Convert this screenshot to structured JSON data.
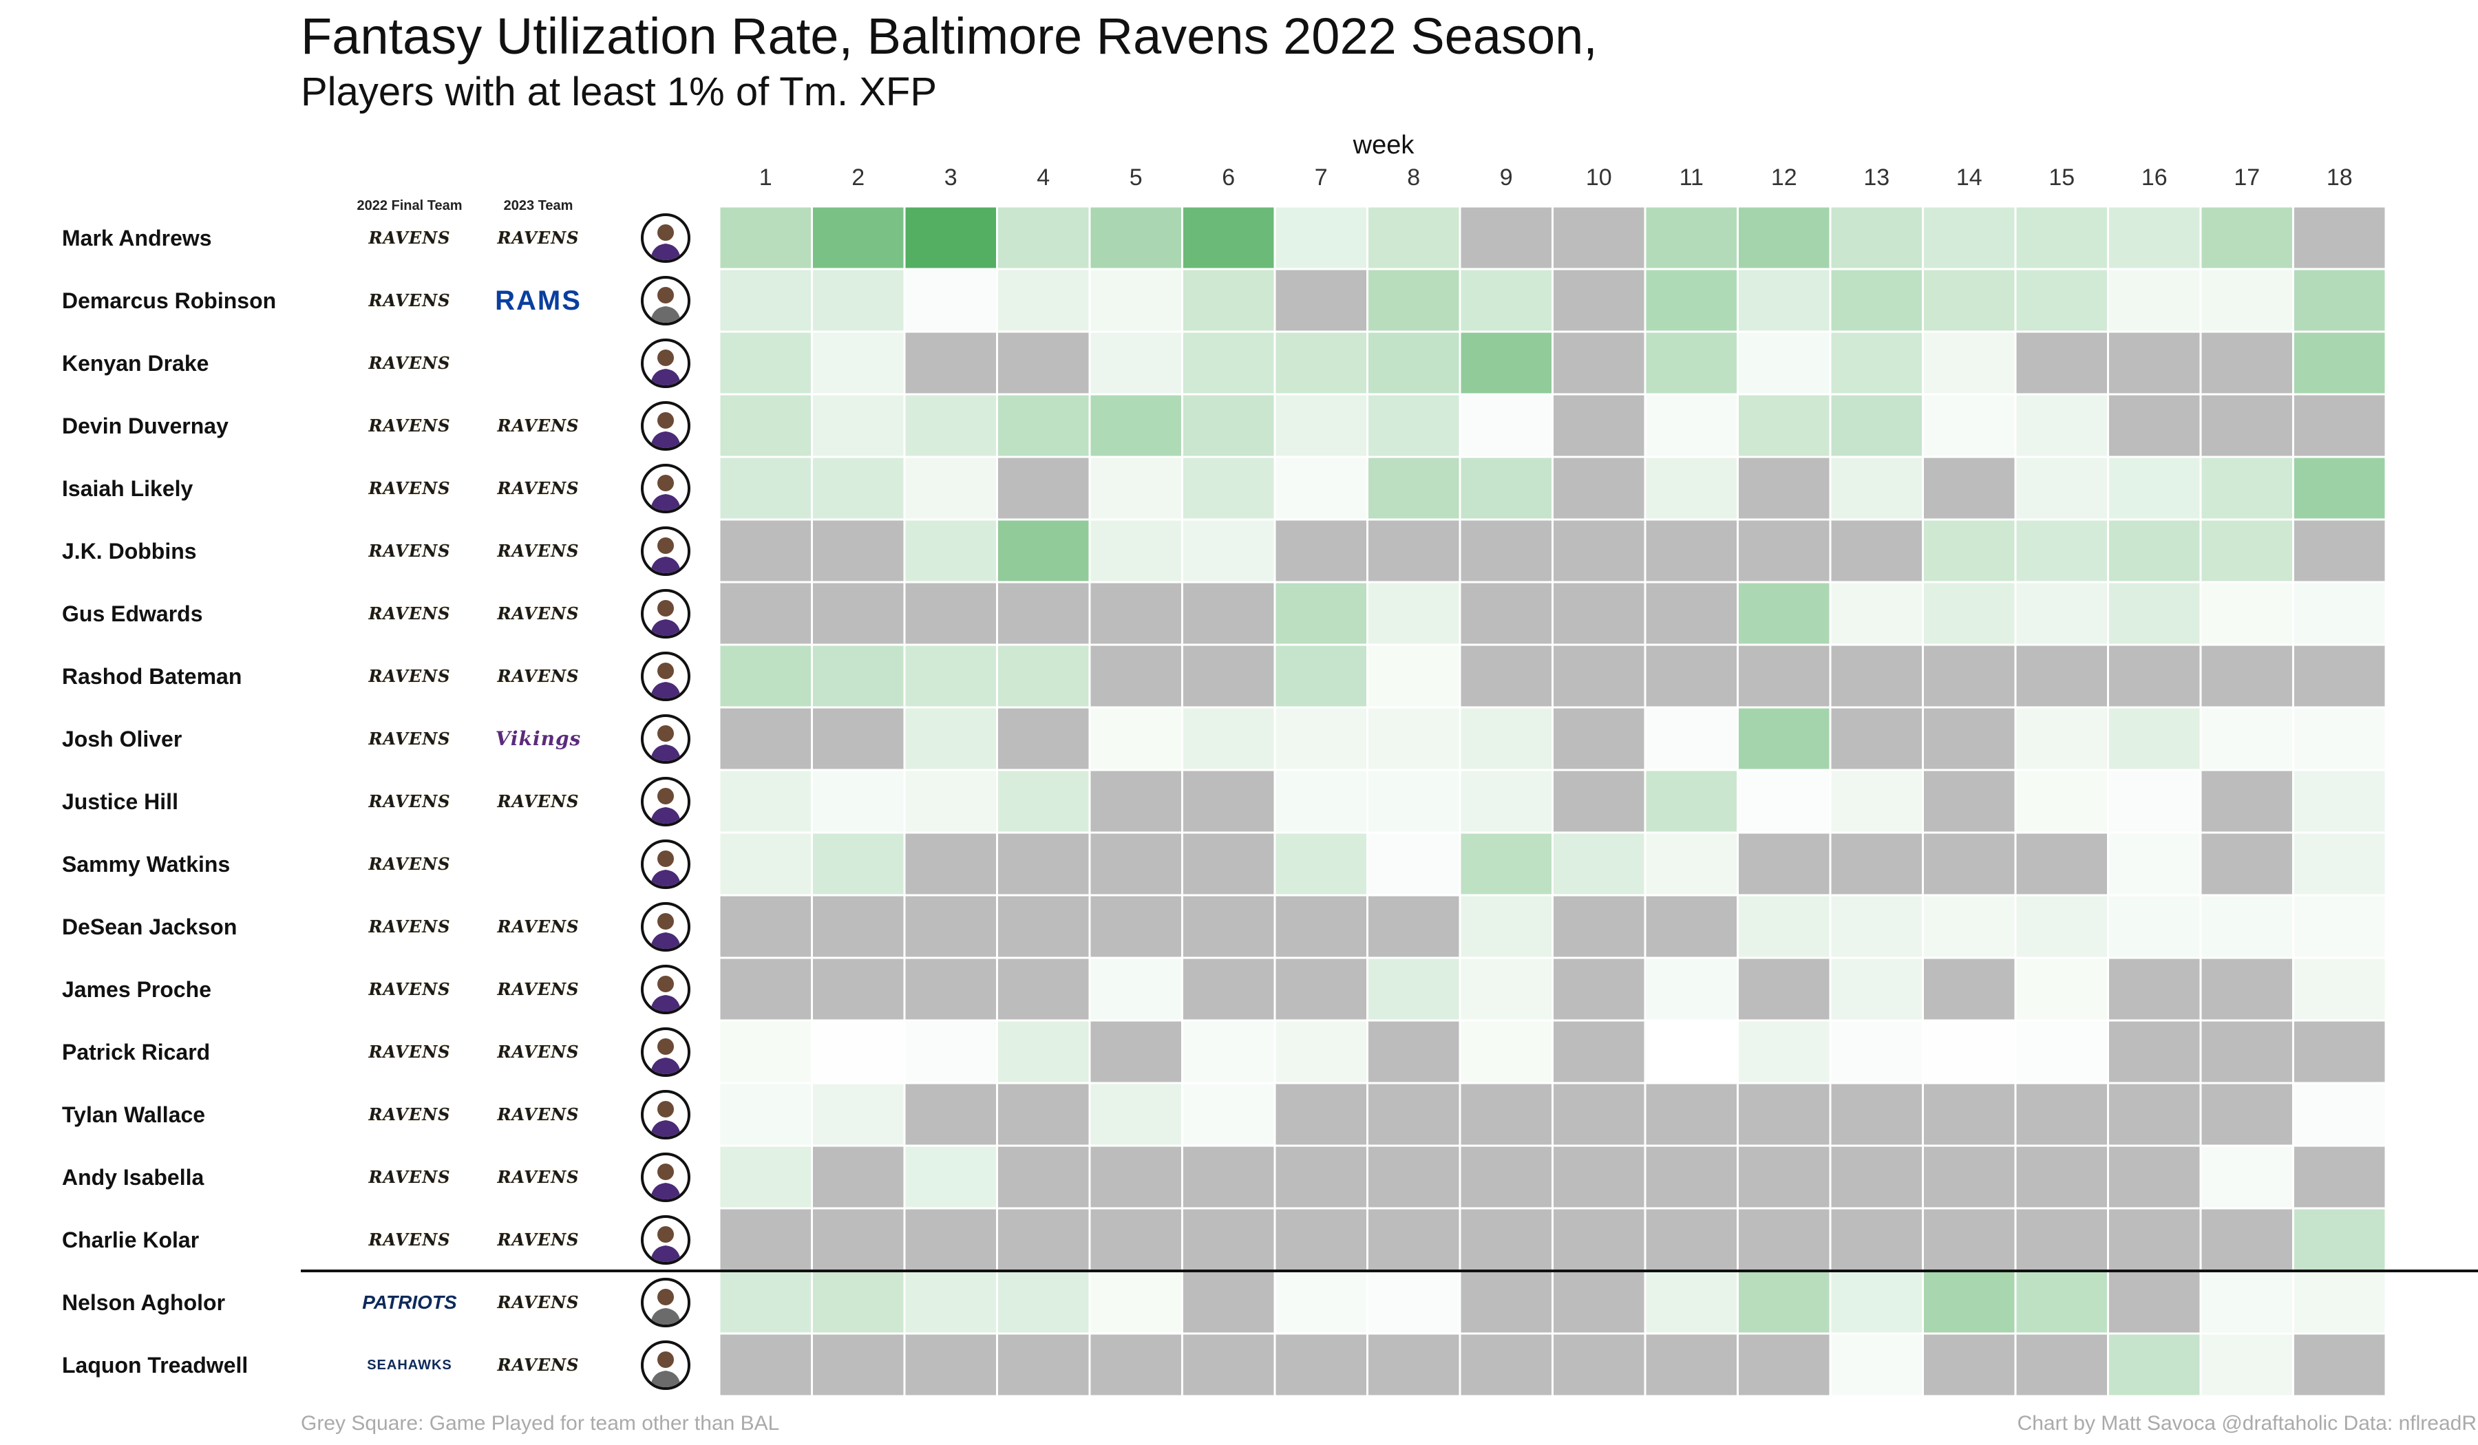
{
  "title": "Fantasy Utilization Rate, Baltimore Ravens 2022 Season,",
  "subtitle": "Players with at least 1% of Tm. XFP",
  "column_headers": {
    "final_team": "2022 Final Team",
    "team_2023": "2023 Team"
  },
  "footer": {
    "left": "Grey Square: Game Played for team other than BAL",
    "right": "Chart by Matt Savoca    @draftaholic    Data: nflreadR"
  },
  "colors": {
    "grey": "#bcbcbc",
    "scale_low": "#ffffff",
    "scale_high": "#41a651",
    "divider": "#111111"
  },
  "chart_data": {
    "type": "heatmap",
    "title": "Fantasy Utilization Rate, Baltimore Ravens 2022 Season,",
    "subtitle": "Players with at least 1% of Tm. XFP",
    "xlabel": "week",
    "weeks": [
      1,
      2,
      3,
      4,
      5,
      6,
      7,
      8,
      9,
      10,
      11,
      12,
      13,
      14,
      15,
      16,
      17,
      18
    ],
    "value_scale": "relative utilization (0 = white, 1 = darkest green), null = grey square",
    "players": [
      {
        "name": "Mark Andrews",
        "final_team": "RAVENS",
        "team_2023": "RAVENS",
        "values": [
          0.38,
          0.7,
          0.9,
          0.28,
          0.45,
          0.78,
          0.14,
          0.26,
          null,
          null,
          0.4,
          0.48,
          0.28,
          0.22,
          0.24,
          0.2,
          0.38,
          null
        ]
      },
      {
        "name": "Demarcus Robinson",
        "final_team": "RAVENS",
        "team_2023": "RAMS",
        "values": [
          0.18,
          0.18,
          0.03,
          0.12,
          0.07,
          0.26,
          null,
          0.38,
          0.24,
          null,
          0.42,
          0.18,
          0.34,
          0.26,
          0.24,
          0.07,
          0.07,
          0.4
        ]
      },
      {
        "name": "Kenyan Drake",
        "final_team": "RAVENS",
        "team_2023": "",
        "values": [
          0.24,
          0.09,
          null,
          null,
          0.1,
          0.24,
          0.26,
          0.32,
          0.58,
          null,
          0.34,
          0.06,
          0.24,
          0.08,
          null,
          null,
          null,
          0.46
        ]
      },
      {
        "name": "Devin Duvernay",
        "final_team": "RAVENS",
        "team_2023": "RAVENS",
        "values": [
          0.26,
          0.12,
          0.2,
          0.34,
          0.42,
          0.28,
          0.12,
          0.22,
          0.03,
          null,
          0.04,
          0.26,
          0.3,
          0.04,
          0.1,
          null,
          null,
          null
        ]
      },
      {
        "name": "Isaiah Likely",
        "final_team": "RAVENS",
        "team_2023": "RAVENS",
        "values": [
          0.22,
          0.2,
          0.08,
          null,
          0.08,
          0.2,
          0.04,
          0.36,
          0.3,
          null,
          0.12,
          null,
          0.12,
          null,
          0.1,
          0.14,
          0.24,
          0.52
        ]
      },
      {
        "name": "J.K. Dobbins",
        "final_team": "RAVENS",
        "team_2023": "RAVENS",
        "values": [
          null,
          null,
          0.2,
          0.58,
          0.12,
          0.1,
          null,
          null,
          null,
          null,
          null,
          null,
          null,
          0.26,
          0.22,
          0.28,
          0.26,
          null
        ]
      },
      {
        "name": "Gus Edwards",
        "final_team": "RAVENS",
        "team_2023": "RAVENS",
        "values": [
          null,
          null,
          null,
          null,
          null,
          null,
          0.36,
          0.12,
          null,
          null,
          null,
          0.44,
          0.08,
          0.16,
          0.1,
          0.18,
          0.05,
          0.06
        ]
      },
      {
        "name": "Rashod Bateman",
        "final_team": "RAVENS",
        "team_2023": "RAVENS",
        "values": [
          0.34,
          0.3,
          0.24,
          0.26,
          null,
          null,
          0.3,
          0.05,
          null,
          null,
          null,
          null,
          null,
          null,
          null,
          null,
          null,
          null
        ]
      },
      {
        "name": "Josh Oliver",
        "final_team": "RAVENS",
        "team_2023": "VIKINGS",
        "values": [
          null,
          null,
          0.16,
          null,
          0.05,
          0.12,
          0.08,
          0.08,
          0.12,
          null,
          0.03,
          0.48,
          null,
          null,
          0.08,
          0.16,
          0.04,
          0.04
        ]
      },
      {
        "name": "Justice Hill",
        "final_team": "RAVENS",
        "team_2023": "RAVENS",
        "values": [
          0.12,
          0.06,
          0.08,
          0.2,
          null,
          null,
          0.06,
          0.06,
          0.1,
          null,
          0.28,
          0.02,
          0.08,
          null,
          0.05,
          0.03,
          null,
          0.1
        ]
      },
      {
        "name": "Sammy Watkins",
        "final_team": "RAVENS",
        "team_2023": "",
        "values": [
          0.12,
          0.22,
          null,
          null,
          null,
          null,
          0.2,
          0.03,
          0.34,
          0.18,
          0.08,
          null,
          null,
          null,
          null,
          0.04,
          null,
          0.1
        ]
      },
      {
        "name": "DeSean Jackson",
        "final_team": "RAVENS",
        "team_2023": "RAVENS",
        "values": [
          null,
          null,
          null,
          null,
          null,
          null,
          null,
          null,
          0.12,
          null,
          null,
          0.12,
          0.1,
          0.07,
          0.1,
          0.06,
          0.06,
          0.04
        ]
      },
      {
        "name": "James Proche",
        "final_team": "RAVENS",
        "team_2023": "RAVENS",
        "values": [
          null,
          null,
          null,
          null,
          0.06,
          null,
          null,
          0.18,
          0.08,
          null,
          0.06,
          null,
          0.1,
          null,
          0.05,
          null,
          null,
          0.08
        ]
      },
      {
        "name": "Patrick Ricard",
        "final_team": "RAVENS",
        "team_2023": "RAVENS",
        "values": [
          0.05,
          0.01,
          0.03,
          0.16,
          null,
          0.04,
          0.08,
          null,
          0.05,
          null,
          0.0,
          0.1,
          0.03,
          0.01,
          0.02,
          null,
          null,
          null
        ]
      },
      {
        "name": "Tylan Wallace",
        "final_team": "RAVENS",
        "team_2023": "RAVENS",
        "values": [
          0.06,
          0.1,
          null,
          null,
          0.12,
          0.04,
          null,
          null,
          null,
          null,
          null,
          null,
          null,
          null,
          null,
          null,
          null,
          0.03
        ]
      },
      {
        "name": "Andy Isabella",
        "final_team": "RAVENS",
        "team_2023": "RAVENS",
        "values": [
          0.16,
          null,
          0.14,
          null,
          null,
          null,
          null,
          null,
          null,
          null,
          null,
          null,
          null,
          null,
          null,
          null,
          0.04,
          null
        ]
      },
      {
        "name": "Charlie Kolar",
        "final_team": "RAVENS",
        "team_2023": "RAVENS",
        "values": [
          null,
          null,
          null,
          null,
          null,
          null,
          null,
          null,
          null,
          null,
          null,
          null,
          null,
          null,
          null,
          null,
          null,
          0.3
        ]
      },
      {
        "name": "Nelson Agholor",
        "final_team": "PATRIOTS",
        "team_2023": "RAVENS",
        "values": [
          0.22,
          0.26,
          0.16,
          0.18,
          0.05,
          null,
          0.04,
          0.03,
          null,
          null,
          0.12,
          0.38,
          0.14,
          0.46,
          0.34,
          null,
          0.06,
          0.07
        ]
      },
      {
        "name": "Laquon Treadwell",
        "final_team": "SEAHAWKS",
        "team_2023": "RAVENS",
        "values": [
          null,
          null,
          null,
          null,
          null,
          null,
          null,
          null,
          null,
          null,
          null,
          null,
          0.04,
          null,
          null,
          0.3,
          0.08,
          null
        ]
      }
    ]
  }
}
